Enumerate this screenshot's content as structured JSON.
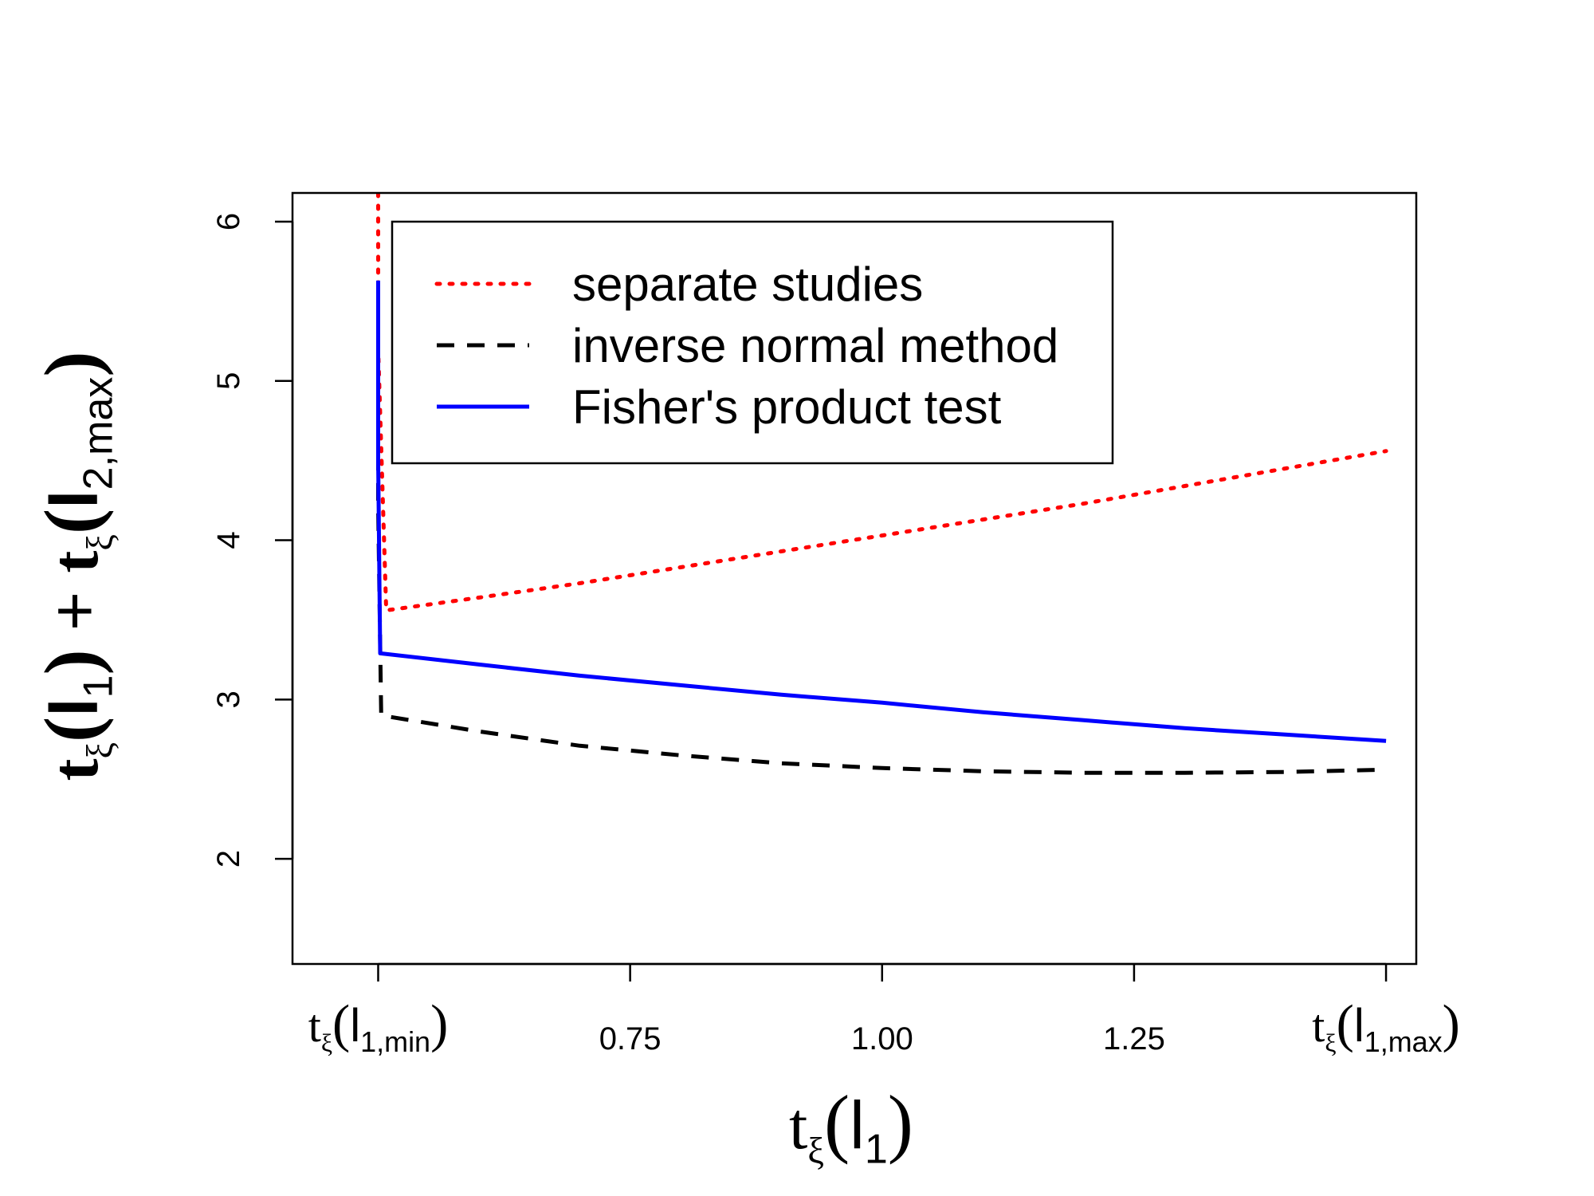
{
  "chart_data": {
    "type": "line",
    "title": "",
    "xlabel": {
      "base": "t",
      "sub": "ξ",
      "open": "(",
      "var": "l",
      "var_sub": "1",
      "close": ")"
    },
    "ylabel": {
      "term1": {
        "base": "t",
        "sub": "ξ",
        "open": "(",
        "var": "l",
        "var_sub": "1",
        "close": ")"
      },
      "plus": "+",
      "term2": {
        "base": "t",
        "sub": "ξ",
        "open": "(",
        "var": "l",
        "var_sub": "2,max",
        "close": ")"
      }
    },
    "xlim": [
      0.415,
      1.53
    ],
    "ylim": [
      1.34,
      6.18
    ],
    "x_ticks": [
      {
        "value": 0.5,
        "label": "",
        "math": {
          "base": "t",
          "sub": "ξ",
          "open": "(",
          "var": "l",
          "var_sub": "1,min",
          "close": ")"
        }
      },
      {
        "value": 0.75,
        "label": "0.75"
      },
      {
        "value": 1.0,
        "label": "1.00"
      },
      {
        "value": 1.25,
        "label": "1.25"
      },
      {
        "value": 1.5,
        "label": "",
        "math": {
          "base": "t",
          "sub": "ξ",
          "open": "(",
          "var": "l",
          "var_sub": "1,max",
          "close": ")"
        }
      }
    ],
    "y_ticks": [
      {
        "value": 2,
        "label": "2"
      },
      {
        "value": 3,
        "label": "3"
      },
      {
        "value": 4,
        "label": "4"
      },
      {
        "value": 5,
        "label": "5"
      },
      {
        "value": 6,
        "label": "6"
      }
    ],
    "legend": {
      "position": "top-center"
    },
    "series": [
      {
        "name": "separate studies",
        "color": "#ff0000",
        "style": "dotted",
        "x": [
          0.5,
          0.5,
          0.508,
          0.6,
          0.7,
          0.8,
          0.9,
          1.0,
          1.1,
          1.2,
          1.3,
          1.4,
          1.5
        ],
        "y": [
          6.18,
          5.2,
          3.56,
          3.64,
          3.73,
          3.83,
          3.93,
          4.03,
          4.13,
          4.23,
          4.34,
          4.45,
          4.56
        ]
      },
      {
        "name": "inverse normal method",
        "color": "#000000",
        "style": "dashed",
        "x": [
          0.5,
          0.5,
          0.503,
          0.6,
          0.7,
          0.8,
          0.9,
          1.0,
          1.1,
          1.2,
          1.3,
          1.4,
          1.5
        ],
        "y": [
          5.5,
          4.2,
          2.9,
          2.8,
          2.71,
          2.65,
          2.6,
          2.57,
          2.55,
          2.54,
          2.54,
          2.545,
          2.56
        ]
      },
      {
        "name": "Fisher's product test",
        "color": "#0000ff",
        "style": "solid",
        "x": [
          0.5,
          0.5,
          0.502,
          0.6,
          0.7,
          0.8,
          0.9,
          1.0,
          1.1,
          1.2,
          1.3,
          1.4,
          1.5
        ],
        "y": [
          5.63,
          4.5,
          3.29,
          3.22,
          3.15,
          3.09,
          3.03,
          2.98,
          2.92,
          2.87,
          2.82,
          2.78,
          2.74
        ]
      }
    ]
  }
}
